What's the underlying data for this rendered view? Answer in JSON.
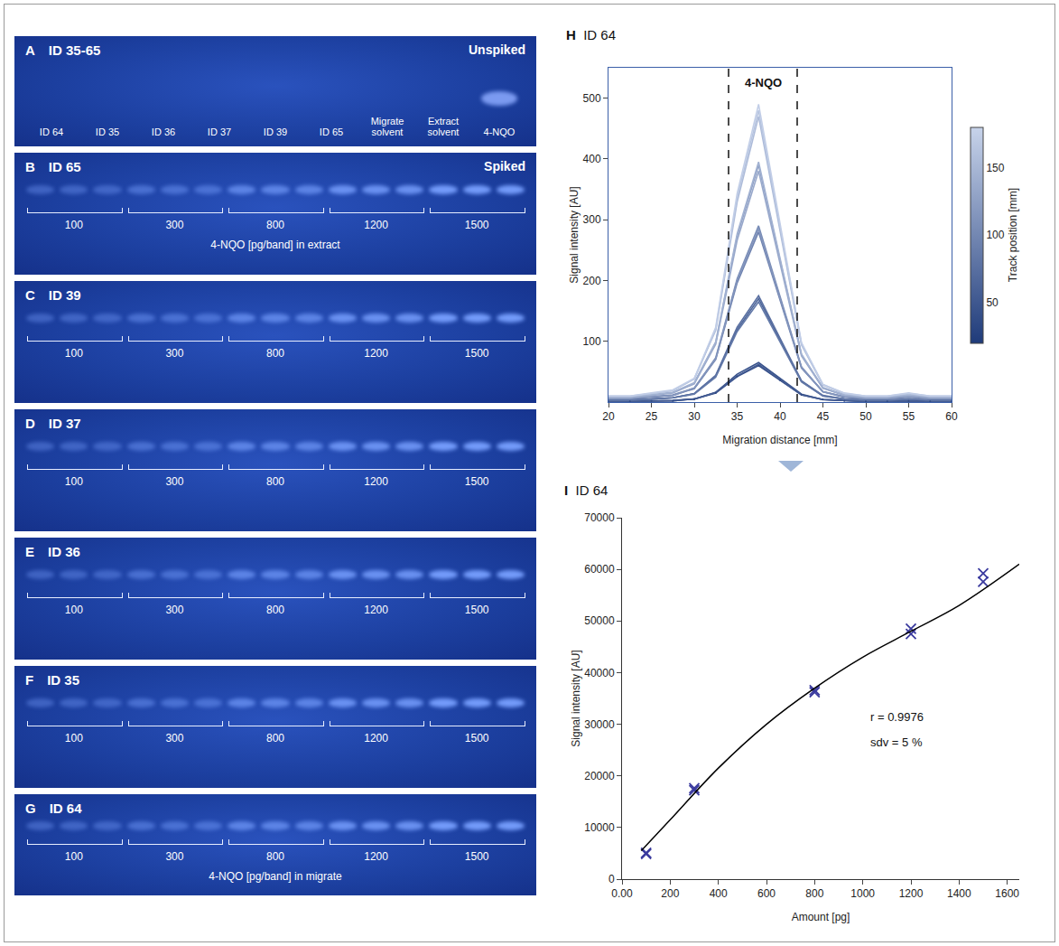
{
  "plates": [
    {
      "letter": "A",
      "id": "ID 35-65",
      "tag": "Unspiked",
      "lanes": [
        {
          "label": "ID 64",
          "band": false
        },
        {
          "label": "ID 35",
          "band": false
        },
        {
          "label": "ID 36",
          "band": false
        },
        {
          "label": "ID 37",
          "band": false
        },
        {
          "label": "ID 39",
          "band": false
        },
        {
          "label": "ID 65",
          "band": false
        },
        {
          "label": "Migrate solvent",
          "band": false
        },
        {
          "label": "Extract solvent",
          "band": false
        },
        {
          "label": "4-NQO",
          "band": true
        }
      ]
    },
    {
      "letter": "B",
      "id": "ID 65",
      "tag": "Spiked",
      "groups": [
        100,
        300,
        800,
        1200,
        1500
      ],
      "bands_per_group": 3,
      "caption": "4-NQO [pg/band] in extract"
    },
    {
      "letter": "C",
      "id": "ID 39",
      "groups": [
        100,
        300,
        800,
        1200,
        1500
      ],
      "bands_per_group": 3
    },
    {
      "letter": "D",
      "id": "ID 37",
      "groups": [
        100,
        300,
        800,
        1200,
        1500
      ],
      "bands_per_group": 3
    },
    {
      "letter": "E",
      "id": "ID 36",
      "groups": [
        100,
        300,
        800,
        1200,
        1500
      ],
      "bands_per_group": 3
    },
    {
      "letter": "F",
      "id": "ID 35",
      "groups": [
        100,
        300,
        800,
        1200,
        1500
      ],
      "bands_per_group": 3
    },
    {
      "letter": "G",
      "id": "ID 64",
      "groups": [
        100,
        300,
        800,
        1200,
        1500
      ],
      "bands_per_group": 3,
      "caption": "4-NQO [pg/band] in migrate"
    }
  ],
  "chart_data": [
    {
      "type": "line",
      "panel": "H",
      "title": "ID 64",
      "x_label": "Migration distance [mm]",
      "y_label": "Signal intensity [AU]",
      "x": [
        20,
        22.5,
        25,
        27.5,
        30,
        32.5,
        35,
        37.5,
        40,
        42.5,
        45,
        47.5,
        50,
        52.5,
        55,
        57.5,
        60
      ],
      "xlim": [
        20,
        60
      ],
      "xticks": [
        20,
        25,
        30,
        35,
        40,
        45,
        50,
        55,
        60
      ],
      "ylim": [
        0,
        550
      ],
      "yticks": [
        100,
        200,
        300,
        400,
        500
      ],
      "grid": false,
      "track_label": "Track position [mm]",
      "track_lim": [
        20,
        180
      ],
      "track_ticks": [
        50,
        100,
        150
      ],
      "zone": [
        34,
        42
      ],
      "annotations": [
        {
          "text": "4-NQO",
          "x": 38
        }
      ],
      "series": [
        {
          "track_position": 35,
          "values": [
            1,
            1,
            2,
            2,
            5,
            15,
            42,
            60,
            36,
            12,
            4,
            2,
            1,
            1,
            2,
            1,
            1
          ]
        },
        {
          "track_position": 45,
          "values": [
            1,
            1,
            2,
            3,
            5,
            16,
            46,
            65,
            39,
            13,
            4,
            2,
            1,
            1,
            2,
            1,
            1
          ]
        },
        {
          "track_position": 55,
          "values": [
            1,
            1,
            2,
            2,
            5,
            16,
            43,
            62,
            37,
            12,
            4,
            2,
            1,
            1,
            2,
            1,
            1
          ]
        },
        {
          "track_position": 65,
          "values": [
            3,
            3,
            5,
            7,
            14,
            43,
            119,
            170,
            102,
            34,
            10,
            5,
            3,
            3,
            5,
            3,
            3
          ]
        },
        {
          "track_position": 75,
          "values": [
            4,
            4,
            5,
            7,
            14,
            44,
            123,
            175,
            105,
            35,
            11,
            5,
            4,
            4,
            5,
            4,
            4
          ]
        },
        {
          "track_position": 85,
          "values": [
            3,
            3,
            5,
            7,
            13,
            41,
            116,
            165,
            99,
            33,
            10,
            5,
            3,
            3,
            5,
            3,
            3
          ]
        },
        {
          "track_position": 95,
          "values": [
            6,
            6,
            8,
            11,
            22,
            70,
            196,
            280,
            168,
            56,
            17,
            8,
            6,
            6,
            8,
            6,
            6
          ]
        },
        {
          "track_position": 105,
          "values": [
            6,
            6,
            9,
            12,
            23,
            73,
            203,
            290,
            174,
            58,
            17,
            9,
            6,
            6,
            9,
            6,
            6
          ]
        },
        {
          "track_position": 115,
          "values": [
            6,
            6,
            9,
            11,
            23,
            71,
            200,
            285,
            171,
            57,
            17,
            9,
            6,
            6,
            9,
            6,
            6
          ]
        },
        {
          "track_position": 125,
          "values": [
            8,
            8,
            12,
            16,
            31,
            98,
            273,
            390,
            234,
            78,
            23,
            12,
            8,
            8,
            12,
            8,
            8
          ]
        },
        {
          "track_position": 135,
          "values": [
            8,
            8,
            11,
            15,
            30,
            95,
            266,
            380,
            228,
            76,
            23,
            11,
            8,
            8,
            11,
            8,
            8
          ]
        },
        {
          "track_position": 145,
          "values": [
            8,
            8,
            12,
            16,
            32,
            99,
            277,
            395,
            237,
            79,
            24,
            12,
            8,
            8,
            12,
            8,
            8
          ]
        },
        {
          "track_position": 155,
          "values": [
            9,
            9,
            14,
            19,
            38,
            118,
            329,
            470,
            282,
            94,
            28,
            14,
            9,
            9,
            14,
            9,
            9
          ]
        },
        {
          "track_position": 165,
          "values": [
            10,
            10,
            14,
            19,
            38,
            120,
            336,
            480,
            288,
            96,
            29,
            14,
            10,
            10,
            14,
            10,
            10
          ]
        },
        {
          "track_position": 175,
          "values": [
            10,
            10,
            15,
            20,
            39,
            123,
            343,
            490,
            294,
            98,
            29,
            15,
            10,
            10,
            15,
            10,
            10
          ]
        }
      ]
    },
    {
      "type": "scatter",
      "panel": "I",
      "title": "ID 64",
      "x_label": "Amount [pg]",
      "y_label": "Signal intensity [AU]",
      "xlim": [
        0,
        1650
      ],
      "xticks": [
        {
          "value": 0,
          "label": "0.00"
        },
        200,
        400,
        600,
        800,
        1000,
        1200,
        1400,
        1600
      ],
      "ylim": [
        0,
        70000
      ],
      "yticks": [
        0,
        10000,
        20000,
        30000,
        40000,
        50000,
        60000,
        70000
      ],
      "grid": false,
      "annotations": [
        {
          "text": "r = 0.9976"
        },
        {
          "text": "sdv = 5 %"
        }
      ],
      "series": [
        {
          "type": "scatter",
          "marker": "x",
          "color": "#3a3a9e",
          "x": [
            100,
            100,
            300,
            300,
            800,
            800,
            1200,
            1200,
            1500,
            1500
          ],
          "values": [
            4900,
            5100,
            17200,
            17600,
            36200,
            36600,
            47500,
            48500,
            57600,
            59200
          ]
        },
        {
          "type": "line",
          "color": "#000000",
          "x": [
            80,
            200,
            400,
            600,
            800,
            1000,
            1200,
            1400,
            1650
          ],
          "values": [
            5500,
            11500,
            21500,
            30000,
            37000,
            43000,
            48000,
            53000,
            61000
          ]
        }
      ]
    }
  ]
}
